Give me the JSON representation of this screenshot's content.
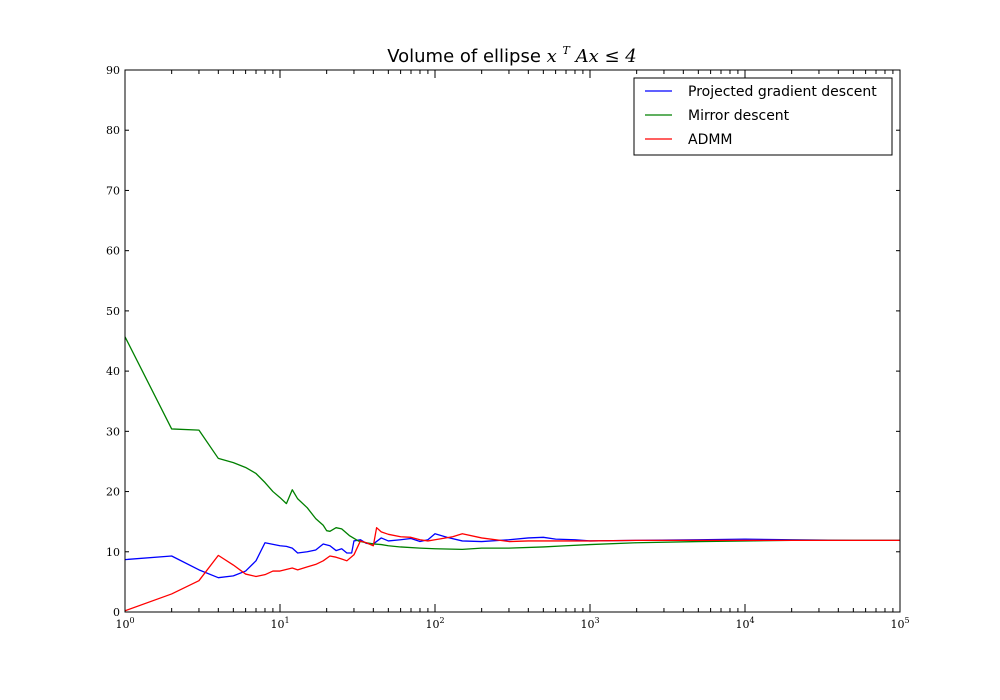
{
  "chart_data": {
    "type": "line",
    "title": "Volume of ellipse x^T Ax ≤ 4",
    "title_parts": {
      "prefix": "Volume of ellipse",
      "math_base": "x",
      "math_sup": "T",
      "math_rest": "Ax ≤ 4"
    },
    "xlabel": "",
    "ylabel": "",
    "xscale": "log",
    "xlim": [
      1,
      100000
    ],
    "ylim": [
      0,
      90
    ],
    "xticks": [
      {
        "value": 1,
        "base": "10",
        "exp": "0"
      },
      {
        "value": 10,
        "base": "10",
        "exp": "1"
      },
      {
        "value": 100,
        "base": "10",
        "exp": "2"
      },
      {
        "value": 1000,
        "base": "10",
        "exp": "3"
      },
      {
        "value": 10000,
        "base": "10",
        "exp": "4"
      },
      {
        "value": 100000,
        "base": "10",
        "exp": "5"
      }
    ],
    "yticks": [
      0,
      10,
      20,
      30,
      40,
      50,
      60,
      70,
      80,
      90
    ],
    "grid": false,
    "legend_position": "top-right",
    "series": [
      {
        "name": "Projected gradient descent",
        "color": "#0000ff",
        "points": [
          [
            1,
            8.7
          ],
          [
            2,
            9.3
          ],
          [
            3,
            7.0
          ],
          [
            4,
            5.7
          ],
          [
            5,
            6.0
          ],
          [
            6,
            6.8
          ],
          [
            7,
            8.5
          ],
          [
            8,
            11.5
          ],
          [
            10,
            11.0
          ],
          [
            11,
            10.9
          ],
          [
            12,
            10.6
          ],
          [
            13,
            9.8
          ],
          [
            15,
            10.0
          ],
          [
            17,
            10.3
          ],
          [
            19,
            11.3
          ],
          [
            21,
            11.0
          ],
          [
            23,
            10.2
          ],
          [
            25,
            10.5
          ],
          [
            27,
            9.8
          ],
          [
            29,
            9.8
          ],
          [
            30,
            11.8
          ],
          [
            33,
            12.0
          ],
          [
            36,
            11.4
          ],
          [
            40,
            11.3
          ],
          [
            45,
            12.3
          ],
          [
            50,
            11.8
          ],
          [
            60,
            12.0
          ],
          [
            70,
            12.2
          ],
          [
            80,
            11.7
          ],
          [
            90,
            12.0
          ],
          [
            100,
            13.0
          ],
          [
            120,
            12.4
          ],
          [
            150,
            11.8
          ],
          [
            200,
            11.7
          ],
          [
            300,
            12.0
          ],
          [
            400,
            12.3
          ],
          [
            500,
            12.4
          ],
          [
            600,
            12.1
          ],
          [
            800,
            12.0
          ],
          [
            1000,
            11.8
          ],
          [
            2000,
            11.9
          ],
          [
            5000,
            12.0
          ],
          [
            10000,
            12.1
          ],
          [
            20000,
            12.0
          ],
          [
            50000,
            11.9
          ],
          [
            100000,
            11.9
          ]
        ]
      },
      {
        "name": "Mirror descent",
        "color": "#008000",
        "points": [
          [
            1,
            45.7
          ],
          [
            2,
            30.4
          ],
          [
            3,
            30.2
          ],
          [
            4,
            25.5
          ],
          [
            5,
            24.8
          ],
          [
            6,
            24.0
          ],
          [
            7,
            23.0
          ],
          [
            8,
            21.5
          ],
          [
            9,
            20.0
          ],
          [
            10,
            19.0
          ],
          [
            11,
            18.0
          ],
          [
            12,
            20.3
          ],
          [
            13,
            18.8
          ],
          [
            15,
            17.3
          ],
          [
            17,
            15.5
          ],
          [
            19,
            14.4
          ],
          [
            20,
            13.5
          ],
          [
            21,
            13.4
          ],
          [
            23,
            14.0
          ],
          [
            25,
            13.8
          ],
          [
            28,
            12.7
          ],
          [
            32,
            11.8
          ],
          [
            36,
            11.5
          ],
          [
            40,
            11.3
          ],
          [
            45,
            11.2
          ],
          [
            50,
            11.0
          ],
          [
            60,
            10.8
          ],
          [
            80,
            10.6
          ],
          [
            100,
            10.5
          ],
          [
            150,
            10.4
          ],
          [
            200,
            10.6
          ],
          [
            300,
            10.6
          ],
          [
            500,
            10.8
          ],
          [
            700,
            11.0
          ],
          [
            1000,
            11.2
          ],
          [
            2000,
            11.5
          ],
          [
            5000,
            11.7
          ],
          [
            10000,
            11.8
          ],
          [
            20000,
            11.9
          ],
          [
            50000,
            11.9
          ],
          [
            100000,
            11.9
          ]
        ]
      },
      {
        "name": "ADMM",
        "color": "#ff0000",
        "points": [
          [
            1,
            0.2
          ],
          [
            2,
            3.0
          ],
          [
            3,
            5.2
          ],
          [
            4,
            9.4
          ],
          [
            5,
            7.8
          ],
          [
            6,
            6.3
          ],
          [
            7,
            5.9
          ],
          [
            8,
            6.2
          ],
          [
            9,
            6.8
          ],
          [
            10,
            6.8
          ],
          [
            12,
            7.3
          ],
          [
            13,
            7.0
          ],
          [
            15,
            7.5
          ],
          [
            17,
            7.9
          ],
          [
            19,
            8.5
          ],
          [
            21,
            9.3
          ],
          [
            23,
            9.1
          ],
          [
            25,
            8.8
          ],
          [
            27,
            8.5
          ],
          [
            30,
            9.5
          ],
          [
            33,
            11.8
          ],
          [
            36,
            11.5
          ],
          [
            40,
            11.0
          ],
          [
            42,
            14.0
          ],
          [
            45,
            13.3
          ],
          [
            50,
            12.9
          ],
          [
            60,
            12.5
          ],
          [
            70,
            12.4
          ],
          [
            80,
            12.0
          ],
          [
            90,
            11.8
          ],
          [
            100,
            12.0
          ],
          [
            130,
            12.5
          ],
          [
            150,
            13.0
          ],
          [
            200,
            12.3
          ],
          [
            300,
            11.7
          ],
          [
            400,
            11.8
          ],
          [
            500,
            11.8
          ],
          [
            700,
            11.8
          ],
          [
            1000,
            11.8
          ],
          [
            2000,
            11.9
          ],
          [
            5000,
            11.9
          ],
          [
            10000,
            11.9
          ],
          [
            20000,
            11.9
          ],
          [
            50000,
            11.9
          ],
          [
            100000,
            11.9
          ]
        ]
      }
    ]
  }
}
